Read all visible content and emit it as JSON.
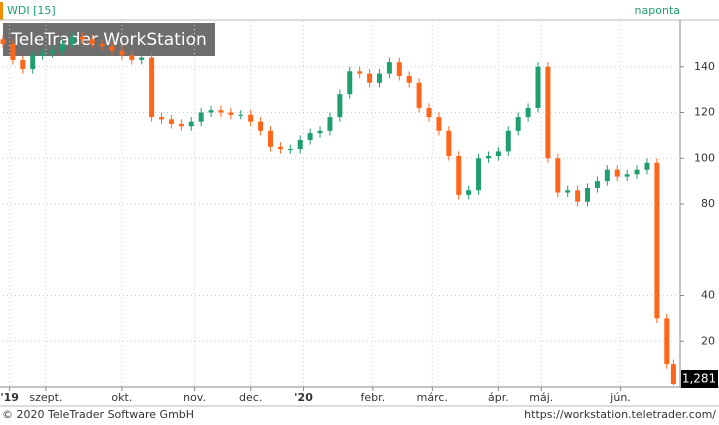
{
  "chart_data": {
    "type": "candlestick",
    "title": "WDI [15]",
    "subtitle": "naponta",
    "watermark": "TeleTrader WorkStation",
    "footer_left": "© 2020 TeleTrader Software GmbH",
    "footer_right": "https://workstation.teletrader.com/",
    "up_color": "#1f9e6e",
    "down_color": "#ff6619",
    "xlim": [
      0,
      205
    ],
    "ylim": [
      0,
      160
    ],
    "yticks": [
      20,
      40,
      80,
      100,
      120,
      140
    ],
    "xticks": [
      {
        "value": 2,
        "label": "'19"
      },
      {
        "value": 13,
        "label": "szept."
      },
      {
        "value": 36,
        "label": "okt."
      },
      {
        "value": 58,
        "label": "nov."
      },
      {
        "value": 75,
        "label": "dec."
      },
      {
        "value": 91,
        "label": "'20"
      },
      {
        "value": 112,
        "label": "febr."
      },
      {
        "value": 130,
        "label": "márc."
      },
      {
        "value": 150,
        "label": "ápr."
      },
      {
        "value": 163,
        "label": "máj."
      },
      {
        "value": 187,
        "label": "jún."
      }
    ],
    "grid": true,
    "last_value": {
      "value": 1.281,
      "label": "1,281"
    },
    "x": [
      0,
      3,
      6,
      9,
      12,
      15,
      18,
      21,
      24,
      27,
      30,
      33,
      36,
      39,
      42,
      45,
      48,
      51,
      54,
      57,
      60,
      63,
      66,
      69,
      72,
      75,
      78,
      81,
      84,
      87,
      90,
      93,
      96,
      99,
      102,
      105,
      108,
      111,
      114,
      117,
      120,
      123,
      126,
      129,
      132,
      135,
      138,
      141,
      144,
      147,
      150,
      153,
      156,
      159,
      162,
      165,
      168,
      171,
      174,
      177,
      180,
      183,
      186,
      189,
      192,
      195,
      198,
      201,
      203
    ],
    "open": [
      152,
      150,
      143,
      139,
      145,
      146,
      147,
      150,
      153,
      152,
      150,
      149,
      147,
      145,
      143,
      144,
      118,
      117,
      115,
      114,
      116,
      120,
      121,
      120,
      119,
      119,
      116,
      112,
      105,
      104,
      104,
      108,
      111,
      112,
      118,
      128,
      138,
      137,
      133,
      137,
      142,
      136,
      133,
      122,
      118,
      112,
      101,
      84,
      86,
      100,
      101,
      103,
      112,
      118,
      122,
      140,
      100,
      85,
      86,
      81,
      87,
      90,
      95,
      92,
      93,
      95,
      98,
      30,
      10
    ],
    "high": [
      154,
      152,
      145,
      147,
      148,
      149,
      152,
      155,
      155,
      154,
      152,
      151,
      149,
      147,
      146,
      146,
      120,
      119,
      117,
      118,
      122,
      123,
      123,
      122,
      121,
      121,
      118,
      114,
      107,
      106,
      110,
      113,
      114,
      120,
      130,
      140,
      140,
      139,
      139,
      144,
      144,
      138,
      135,
      124,
      120,
      114,
      103,
      88,
      102,
      103,
      105,
      114,
      120,
      124,
      142,
      142,
      102,
      88,
      88,
      89,
      92,
      97,
      97,
      95,
      97,
      100,
      100,
      32,
      12
    ],
    "low": [
      148,
      141,
      137,
      137,
      143,
      144,
      145,
      148,
      150,
      148,
      147,
      145,
      143,
      141,
      141,
      116,
      115,
      113,
      112,
      112,
      114,
      118,
      118,
      117,
      117,
      114,
      110,
      103,
      102,
      102,
      102,
      106,
      109,
      110,
      116,
      126,
      135,
      131,
      131,
      135,
      134,
      131,
      120,
      116,
      110,
      99,
      82,
      82,
      84,
      98,
      99,
      101,
      110,
      116,
      120,
      98,
      83,
      83,
      79,
      79,
      85,
      88,
      90,
      90,
      91,
      93,
      28,
      8,
      0.8
    ],
    "close": [
      150,
      143,
      139,
      145,
      146,
      147,
      150,
      153,
      152,
      150,
      149,
      147,
      145,
      143,
      144,
      118,
      117,
      115,
      114,
      116,
      120,
      121,
      120,
      119,
      119,
      116,
      112,
      105,
      104,
      104,
      108,
      111,
      112,
      118,
      128,
      138,
      137,
      133,
      137,
      142,
      136,
      133,
      122,
      118,
      112,
      101,
      84,
      86,
      100,
      101,
      103,
      112,
      118,
      122,
      140,
      100,
      85,
      86,
      81,
      87,
      90,
      95,
      92,
      93,
      95,
      98,
      30,
      10,
      1.281
    ]
  }
}
